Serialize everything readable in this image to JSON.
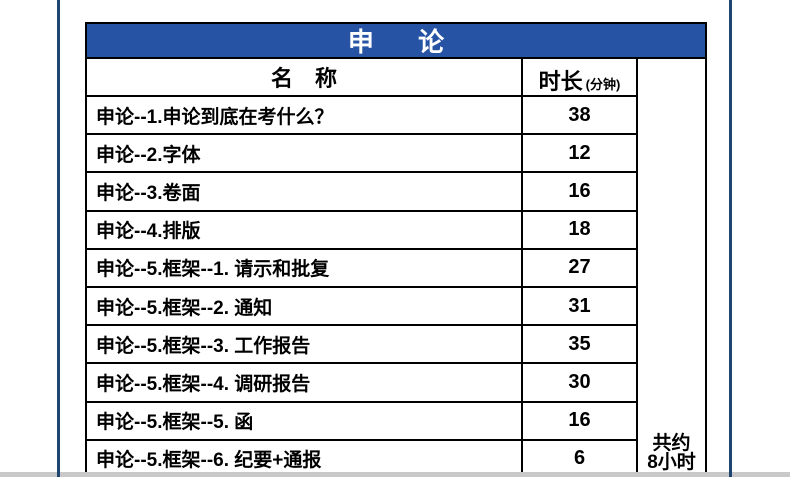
{
  "page": {
    "accent_blue": "#2653a4",
    "side_line_navy": "#1f4571",
    "bottom_strip_gray": "#c9c9c9",
    "border_black": "#000000"
  },
  "table": {
    "title": "申　论",
    "header": {
      "name": "名　称",
      "duration": "时长",
      "duration_unit": "(分钟)"
    },
    "rows": [
      {
        "name": "申论--1.申论到底在考什么？",
        "duration": "38"
      },
      {
        "name": "申论--2.字体",
        "duration": "12"
      },
      {
        "name": "申论--3.卷面",
        "duration": "16"
      },
      {
        "name": "申论--4.排版",
        "duration": "18"
      },
      {
        "name": "申论--5.框架--1. 请示和批复",
        "duration": "27"
      },
      {
        "name": "申论--5.框架--2. 通知",
        "duration": "31"
      },
      {
        "name": "申论--5.框架--3. 工作报告",
        "duration": "35"
      },
      {
        "name": "申论--5.框架--4. 调研报告",
        "duration": "30"
      },
      {
        "name": "申论--5.框架--5. 函",
        "duration": "16"
      },
      {
        "name": "申论--5.框架--6. 纪要+通报",
        "duration": "6"
      }
    ],
    "total_note": {
      "line1": "共约",
      "line2": "8小时"
    }
  }
}
